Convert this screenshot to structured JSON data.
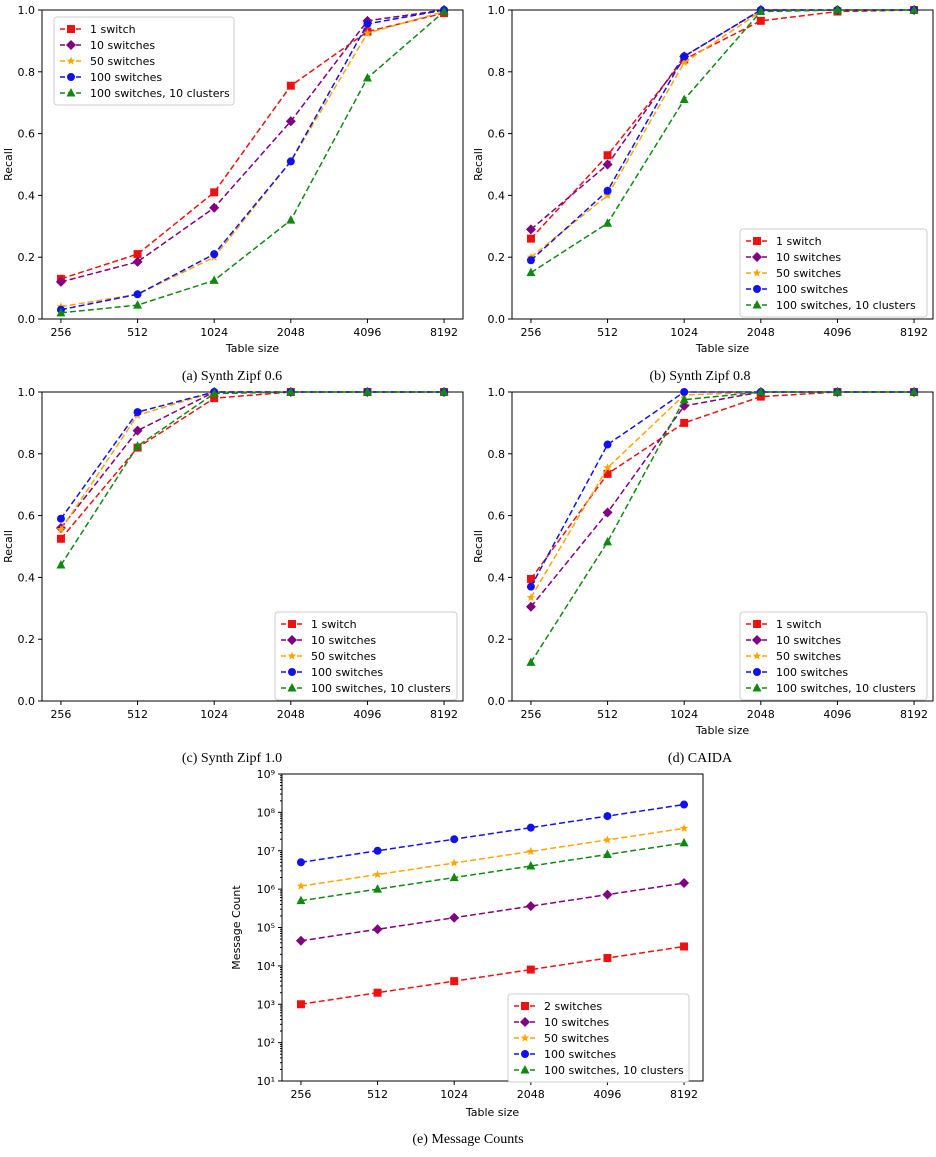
{
  "chart_data": [
    {
      "type": "line",
      "caption": "(a) Synth Zipf 0.6",
      "xlabel": "Table size",
      "ylabel": "Recall",
      "categories": [
        "256",
        "512",
        "1024",
        "2048",
        "4096",
        "8192"
      ],
      "ylim": [
        0,
        1.0
      ],
      "yticks": [
        "0.0",
        "0.2",
        "0.4",
        "0.6",
        "0.8",
        "1.0"
      ],
      "ytick_values": [
        0,
        0.2,
        0.4,
        0.6,
        0.8,
        1.0
      ],
      "legend_position": "top-left",
      "series": [
        {
          "name": "1 switch",
          "values": [
            0.13,
            0.21,
            0.41,
            0.755,
            0.93,
            0.99
          ]
        },
        {
          "name": "10 switches",
          "values": [
            0.12,
            0.185,
            0.36,
            0.64,
            0.965,
            1.0
          ]
        },
        {
          "name": "50 switches",
          "values": [
            0.04,
            0.08,
            0.2,
            0.51,
            0.925,
            0.995
          ]
        },
        {
          "name": "100 switches",
          "values": [
            0.03,
            0.08,
            0.21,
            0.51,
            0.955,
            1.0
          ]
        },
        {
          "name": "100 switches, 10 clusters",
          "values": [
            0.02,
            0.045,
            0.125,
            0.32,
            0.78,
            0.995
          ]
        }
      ]
    },
    {
      "type": "line",
      "caption": "(b) Synth Zipf 0.8",
      "xlabel": "Table size",
      "ylabel": "Recall",
      "categories": [
        "256",
        "512",
        "1024",
        "2048",
        "4096",
        "8192"
      ],
      "ylim": [
        0,
        1.0
      ],
      "yticks": [
        "0.0",
        "0.2",
        "0.4",
        "0.6",
        "0.8",
        "1.0"
      ],
      "ytick_values": [
        0,
        0.2,
        0.4,
        0.6,
        0.8,
        1.0
      ],
      "legend_position": "bottom-right",
      "series": [
        {
          "name": "1 switch",
          "values": [
            0.26,
            0.53,
            0.84,
            0.965,
            0.995,
            1.0
          ]
        },
        {
          "name": "10 switches",
          "values": [
            0.29,
            0.5,
            0.85,
            1.0,
            1.0,
            1.0
          ]
        },
        {
          "name": "50 switches",
          "values": [
            0.2,
            0.4,
            0.83,
            0.995,
            1.0,
            1.0
          ]
        },
        {
          "name": "100 switches",
          "values": [
            0.19,
            0.415,
            0.85,
            1.0,
            1.0,
            1.0
          ]
        },
        {
          "name": "100 switches, 10 clusters",
          "values": [
            0.15,
            0.31,
            0.71,
            0.995,
            1.0,
            1.0
          ]
        }
      ]
    },
    {
      "type": "line",
      "caption": "(c) Synth Zipf 1.0",
      "xlabel": "",
      "ylabel": "Recall",
      "categories": [
        "256",
        "512",
        "1024",
        "2048",
        "4096",
        "8192"
      ],
      "ylim": [
        0,
        1.0
      ],
      "yticks": [
        "0.0",
        "0.2",
        "0.4",
        "0.6",
        "0.8",
        "1.0"
      ],
      "ytick_values": [
        0,
        0.2,
        0.4,
        0.6,
        0.8,
        1.0
      ],
      "legend_position": "bottom-right",
      "series": [
        {
          "name": "1 switch",
          "values": [
            0.525,
            0.82,
            0.98,
            1.0,
            1.0,
            1.0
          ]
        },
        {
          "name": "10 switches",
          "values": [
            0.56,
            0.875,
            1.0,
            1.0,
            1.0,
            1.0
          ]
        },
        {
          "name": "50 switches",
          "values": [
            0.555,
            0.925,
            1.0,
            1.0,
            1.0,
            1.0
          ]
        },
        {
          "name": "100 switches",
          "values": [
            0.59,
            0.935,
            1.0,
            1.0,
            1.0,
            1.0
          ]
        },
        {
          "name": "100 switches, 10 clusters",
          "values": [
            0.44,
            0.825,
            0.995,
            1.0,
            1.0,
            1.0
          ]
        }
      ]
    },
    {
      "type": "line",
      "caption": "(d) CAIDA",
      "xlabel": "Table size",
      "ylabel": "Recall",
      "categories": [
        "256",
        "512",
        "1024",
        "2048",
        "4096",
        "8192"
      ],
      "ylim": [
        0,
        1.0
      ],
      "yticks": [
        "0.0",
        "0.2",
        "0.4",
        "0.6",
        "0.8",
        "1.0"
      ],
      "ytick_values": [
        0,
        0.2,
        0.4,
        0.6,
        0.8,
        1.0
      ],
      "legend_position": "bottom-right",
      "series": [
        {
          "name": "1 switch",
          "values": [
            0.395,
            0.735,
            0.9,
            0.985,
            1.0,
            1.0
          ]
        },
        {
          "name": "10 switches",
          "values": [
            0.305,
            0.61,
            0.955,
            1.0,
            1.0,
            1.0
          ]
        },
        {
          "name": "50 switches",
          "values": [
            0.335,
            0.755,
            0.99,
            1.0,
            1.0,
            1.0
          ]
        },
        {
          "name": "100 switches",
          "values": [
            0.37,
            0.83,
            1.0,
            1.0,
            1.0,
            1.0
          ]
        },
        {
          "name": "100 switches, 10 clusters",
          "values": [
            0.125,
            0.515,
            0.975,
            1.0,
            1.0,
            1.0
          ]
        }
      ]
    },
    {
      "type": "line",
      "caption": "(e) Message Counts",
      "xlabel": "Table size",
      "ylabel": "Message Count",
      "categories": [
        "256",
        "512",
        "1024",
        "2048",
        "4096",
        "8192"
      ],
      "yscale": "log",
      "ylim": [
        10,
        1000000000
      ],
      "yticks": [
        "10¹",
        "10²",
        "10³",
        "10⁴",
        "10⁵",
        "10⁶",
        "10⁷",
        "10⁸",
        "10⁹"
      ],
      "ytick_values": [
        10,
        100,
        1000,
        10000,
        100000,
        1000000,
        10000000,
        100000000,
        1000000000
      ],
      "legend_position": "bottom-right",
      "series": [
        {
          "name": "2 switches",
          "values": [
            1000,
            2000,
            4000,
            8000,
            16000,
            32000
          ]
        },
        {
          "name": "10 switches",
          "values": [
            45000,
            90000,
            180000,
            360000,
            720000,
            1440000
          ]
        },
        {
          "name": "50 switches",
          "values": [
            1200000,
            2400000,
            4800000,
            9600000,
            19200000,
            38400000
          ]
        },
        {
          "name": "100 switches",
          "values": [
            5000000,
            10000000,
            20000000,
            40000000,
            80000000,
            160000000
          ]
        },
        {
          "name": "100 switches, 10 clusters",
          "values": [
            500000,
            1000000,
            2000000,
            4000000,
            8000000,
            16000000
          ]
        }
      ]
    }
  ],
  "series_styles": [
    {
      "color": "#ee1111",
      "marker": "square"
    },
    {
      "color": "#800080",
      "marker": "diamond"
    },
    {
      "color": "#ffa500",
      "marker": "star"
    },
    {
      "color": "#1111ee",
      "marker": "circle"
    },
    {
      "color": "#118811",
      "marker": "triangle"
    }
  ]
}
